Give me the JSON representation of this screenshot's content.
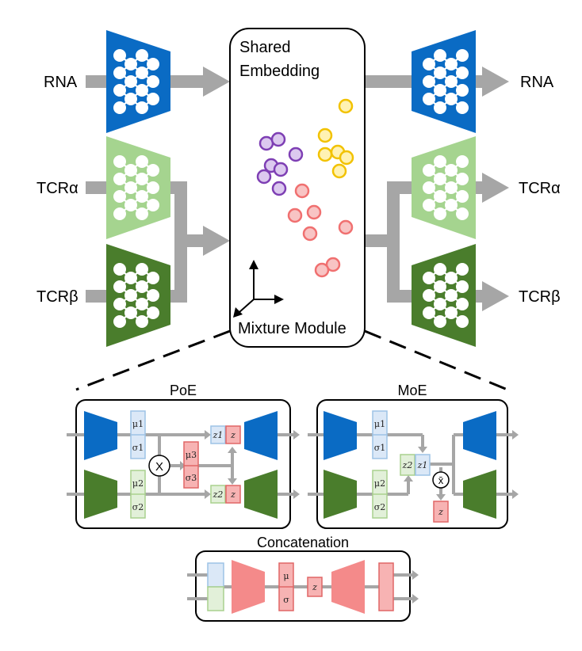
{
  "labels": {
    "rna_in": "RNA",
    "tcra_in": "TCRα",
    "tcrb_in": "TCRβ",
    "rna_out": "RNA",
    "tcra_out": "TCRα",
    "tcrb_out": "TCRβ",
    "shared_line1": "Shared",
    "shared_line2": "Embedding",
    "mixture": "Mixture Module"
  },
  "poe": {
    "title": "PoE",
    "mu1": "μ1",
    "sigma1": "σ1",
    "mu2": "μ2",
    "sigma2": "σ2",
    "mu3": "μ3",
    "sigma3": "σ3",
    "product": "X",
    "z1": "z1",
    "z2": "z2",
    "z": "z"
  },
  "moe": {
    "title": "MoE",
    "mu1": "μ1",
    "sigma1": "σ1",
    "mu2": "μ2",
    "sigma2": "σ2",
    "z1": "z1",
    "z2": "z2",
    "mean": "x̄",
    "z": "z"
  },
  "concat": {
    "title": "Concatenation",
    "mu": "μ",
    "sigma": "σ",
    "z": "z"
  },
  "colors": {
    "rna_blue": "#0a6bc4",
    "tcra_light_green": "#a5d48f",
    "tcrb_dark_green": "#4a7d2c",
    "arrow_gray": "#a6a6a6",
    "purple": "#7e3fb4",
    "yellow": "#f2c200",
    "red": "#f07070",
    "mu_box_blue": "#dbe8f7",
    "mu_box_green": "#e2f0d9",
    "z_box_red": "#f7b3b3"
  }
}
